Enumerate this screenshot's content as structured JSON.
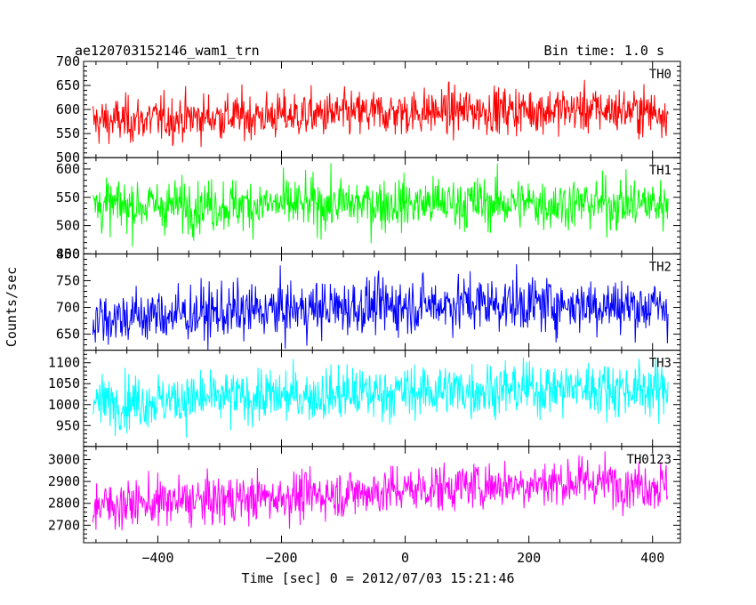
{
  "header": {
    "object_name": "ae120703152146_wam1_trn",
    "bin_time": "Bin time: 1.0 s"
  },
  "chart_data": {
    "type": "line",
    "xlabel": "Time [sec] 0 = 2012/07/03 15:21:46",
    "ylabel": "Counts/sec",
    "xlim": [
      -520,
      445
    ],
    "x_range": [
      -505,
      425
    ],
    "x_ticks": [
      -400,
      -200,
      0,
      200,
      400
    ],
    "x_tick_labels": [
      "−400",
      "−200",
      "0",
      "200",
      "400"
    ],
    "panels": [
      {
        "name": "TH0",
        "color": "#ff0000",
        "ylim": [
          500,
          700
        ],
        "y_ticks": [
          500,
          550,
          600,
          650,
          700
        ],
        "y_tick_labels": [
          "500",
          "550",
          "600",
          "650",
          "700"
        ],
        "trend": [
          [
            -505,
            575
          ],
          [
            -300,
            585
          ],
          [
            -100,
            590
          ],
          [
            100,
            598
          ],
          [
            300,
            600
          ],
          [
            425,
            595
          ]
        ],
        "noise": 24
      },
      {
        "name": "TH1",
        "color": "#00ff00",
        "ylim": [
          450,
          620
        ],
        "y_ticks": [
          450,
          500,
          550,
          600
        ],
        "y_tick_labels": [
          "450",
          "500",
          "550",
          "600"
        ],
        "trend": [
          [
            -505,
            535
          ],
          [
            -200,
            537
          ],
          [
            100,
            540
          ],
          [
            425,
            538
          ]
        ],
        "noise": 23
      },
      {
        "name": "TH2",
        "color": "#0000ff",
        "ylim": [
          620,
          800
        ],
        "y_ticks": [
          650,
          700,
          750,
          800
        ],
        "y_tick_labels": [
          "650",
          "700",
          "750",
          "800"
        ],
        "trend": [
          [
            -505,
            680
          ],
          [
            -300,
            690
          ],
          [
            -100,
            700
          ],
          [
            100,
            708
          ],
          [
            300,
            705
          ],
          [
            425,
            700
          ]
        ],
        "noise": 26
      },
      {
        "name": "TH3",
        "color": "#00ffff",
        "ylim": [
          900,
          1130
        ],
        "y_ticks": [
          950,
          1000,
          1050,
          1100
        ],
        "y_tick_labels": [
          "950",
          "1000",
          "1050",
          "1100"
        ],
        "trend": [
          [
            -505,
            1005
          ],
          [
            -300,
            1015
          ],
          [
            -100,
            1025
          ],
          [
            100,
            1035
          ],
          [
            300,
            1040
          ],
          [
            425,
            1035
          ]
        ],
        "noise": 32
      },
      {
        "name": "TH0123",
        "color": "#ff00ff",
        "ylim": [
          2620,
          3060
        ],
        "y_ticks": [
          2700,
          2800,
          2900,
          3000
        ],
        "y_tick_labels": [
          "2700",
          "2800",
          "2900",
          "3000"
        ],
        "trend": [
          [
            -505,
            2790
          ],
          [
            -300,
            2815
          ],
          [
            -100,
            2845
          ],
          [
            100,
            2880
          ],
          [
            300,
            2900
          ],
          [
            425,
            2880
          ]
        ],
        "noise": 55
      }
    ]
  }
}
